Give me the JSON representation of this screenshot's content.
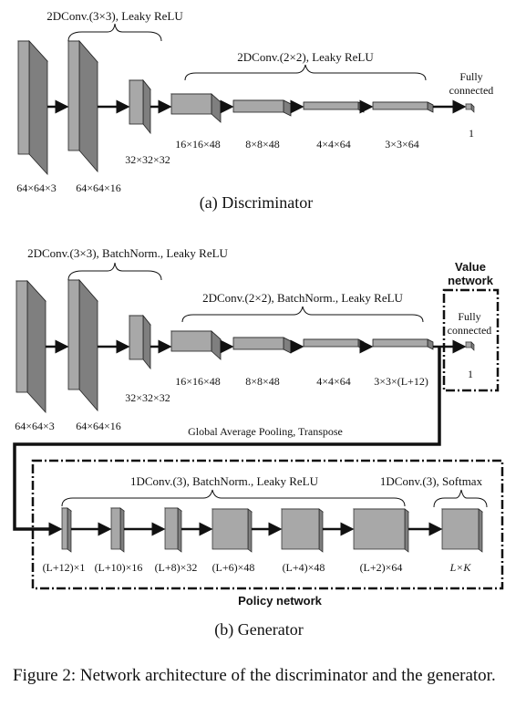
{
  "discriminator": {
    "conv2d_3x3_label": "2DConv.(3×3), Leaky ReLU",
    "conv2d_2x2_label": "2DConv.(2×2), Leaky ReLU",
    "fc_label_line1": "Fully",
    "fc_label_line2": "connected",
    "fc_output": "1",
    "shapes": [
      "64×64×3",
      "64×64×16",
      "32×32×32",
      "16×16×48",
      "8×8×48",
      "4×4×64",
      "3×3×64"
    ],
    "title": "(a) Discriminator"
  },
  "generator": {
    "conv2d_3x3_label": "2DConv.(3×3), BatchNorm., Leaky ReLU",
    "conv2d_2x2_label": "2DConv.(2×2), BatchNorm., Leaky ReLU",
    "value_network_line1": "Value",
    "value_network_line2": "network",
    "fc_label_line1": "Fully",
    "fc_label_line2": "connected",
    "fc_output": "1",
    "shapes": [
      "64×64×3",
      "64×64×16",
      "32×32×32",
      "16×16×48",
      "8×8×48",
      "4×4×64",
      "3×3×(L+12)"
    ],
    "pooling_label": "Global Average Pooling, Transpose",
    "conv1d_label": "1DConv.(3), BatchNorm., Leaky ReLU",
    "conv1d_softmax_label": "1DConv.(3), Softmax",
    "policy_shapes": [
      "(L+12)×1",
      "(L+10)×16",
      "(L+8)×32",
      "(L+6)×48",
      "(L+4)×48",
      "(L+2)×64",
      "L×K"
    ],
    "policy_network_label": "Policy network",
    "title": "(b) Generator"
  },
  "figure_caption": "Figure 2: Network architecture of the discriminator and the generator."
}
